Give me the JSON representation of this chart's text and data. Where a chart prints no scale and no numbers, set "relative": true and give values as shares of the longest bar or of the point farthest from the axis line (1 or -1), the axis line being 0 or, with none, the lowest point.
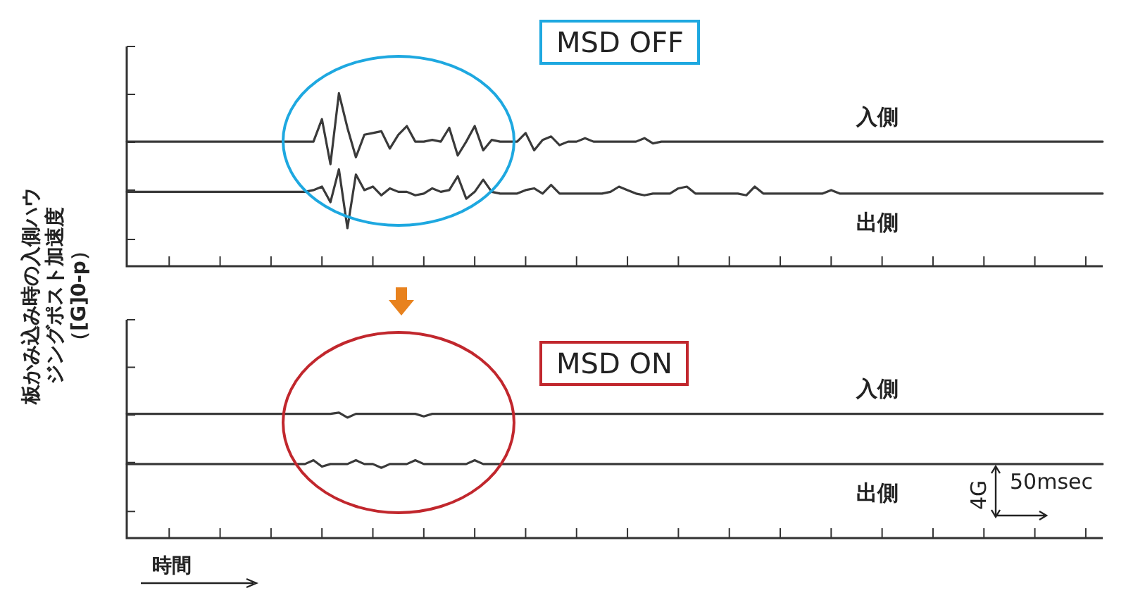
{
  "chart_data": [
    {
      "type": "line",
      "relative": true,
      "title": "MSD OFF",
      "ylabel": "板かみ込み時の入側ハウジングポスト加速度（[G]0-p）",
      "categories": [
        null,
        null,
        null,
        null,
        null,
        null,
        null,
        null,
        null,
        null,
        null,
        null,
        null,
        null,
        null,
        null,
        null,
        null,
        null,
        null,
        null,
        null,
        null,
        null,
        null,
        null,
        null,
        null,
        null,
        null,
        null,
        null,
        null,
        null,
        null,
        null,
        null,
        null,
        null,
        null,
        null,
        null,
        null,
        null,
        null,
        null,
        null,
        null,
        null,
        null,
        null,
        null,
        null,
        null,
        null,
        null,
        null,
        null,
        null,
        null,
        null,
        null,
        null,
        null,
        null,
        null,
        null,
        null,
        null,
        null,
        null,
        null,
        null,
        null,
        null,
        null,
        null,
        null,
        null,
        null,
        null,
        null,
        null,
        null,
        null,
        null,
        null,
        null,
        null,
        null,
        null,
        null,
        null,
        null,
        null,
        null,
        null,
        null,
        null,
        null,
        null,
        null,
        null,
        null,
        null,
        null,
        null,
        null,
        null,
        null,
        null,
        null,
        null,
        null,
        null,
        null
      ],
      "series": [
        {
          "name": "入側",
          "color": "#3a3a3a",
          "values": [
            0.72,
            0.72,
            0.72,
            0.72,
            0.72,
            0.72,
            0.72,
            0.72,
            0.72,
            0.72,
            0.72,
            0.72,
            0.72,
            0.72,
            0.72,
            0.72,
            0.72,
            0.72,
            0.72,
            0.72,
            0.72,
            0.72,
            0.72,
            0.85,
            0.59,
            1,
            0.8,
            0.63,
            0.76,
            0.77,
            0.78,
            0.68,
            0.76,
            0.81,
            0.72,
            0.72,
            0.73,
            0.72,
            0.8,
            0.64,
            0.72,
            0.81,
            0.67,
            0.73,
            0.72,
            0.72,
            0.72,
            0.77,
            0.67,
            0.73,
            0.75,
            0.7,
            0.72,
            0.72,
            0.74,
            0.72,
            0.72,
            0.72,
            0.72,
            0.72,
            0.72,
            0.74,
            0.71,
            0.72,
            0.72,
            0.72,
            0.72,
            0.72,
            0.72,
            0.72,
            0.72,
            0.72,
            0.72,
            0.72,
            0.72,
            0.72,
            0.72,
            0.72,
            0.72,
            0.72,
            0.72,
            0.72,
            0.72,
            0.72,
            0.72,
            0.72,
            0.72,
            0.72,
            0.72,
            0.72,
            0.72,
            0.72,
            0.72,
            0.72,
            0.72,
            0.72,
            0.72,
            0.72,
            0.72,
            0.72,
            0.72,
            0.72,
            0.72,
            0.72,
            0.72,
            0.72,
            0.72,
            0.72,
            0.72,
            0.72,
            0.72,
            0.72,
            0.72,
            0.72,
            0.72,
            0.72
          ]
        },
        {
          "name": "出側",
          "color": "#3a3a3a",
          "values": [
            0.43,
            0.43,
            0.43,
            0.43,
            0.43,
            0.43,
            0.43,
            0.43,
            0.43,
            0.43,
            0.43,
            0.43,
            0.43,
            0.43,
            0.43,
            0.43,
            0.43,
            0.43,
            0.43,
            0.43,
            0.43,
            0.43,
            0.44,
            0.46,
            0.37,
            0.56,
            0.22,
            0.53,
            0.44,
            0.46,
            0.41,
            0.45,
            0.43,
            0.43,
            0.41,
            0.42,
            0.45,
            0.43,
            0.44,
            0.52,
            0.39,
            0.43,
            0.5,
            0.43,
            0.42,
            0.42,
            0.42,
            0.44,
            0.45,
            0.42,
            0.47,
            0.42,
            0.42,
            0.42,
            0.42,
            0.42,
            0.42,
            0.43,
            0.46,
            0.44,
            0.42,
            0.41,
            0.42,
            0.42,
            0.42,
            0.45,
            0.46,
            0.42,
            0.42,
            0.42,
            0.42,
            0.42,
            0.42,
            0.41,
            0.46,
            0.42,
            0.42,
            0.42,
            0.42,
            0.42,
            0.42,
            0.42,
            0.42,
            0.44,
            0.42,
            0.42,
            0.42,
            0.42,
            0.42,
            0.42,
            0.42,
            0.42,
            0.42,
            0.42,
            0.42,
            0.42,
            0.42,
            0.42,
            0.42,
            0.42,
            0.42,
            0.42,
            0.42,
            0.42,
            0.42,
            0.42,
            0.42,
            0.42,
            0.42,
            0.42,
            0.42,
            0.42,
            0.42,
            0.42,
            0.42,
            0.42
          ]
        }
      ]
    },
    {
      "type": "line",
      "relative": true,
      "title": "MSD ON",
      "xlabel": "時間",
      "annotations": [
        "4G",
        "50msec"
      ],
      "categories": [
        null,
        null,
        null,
        null,
        null,
        null,
        null,
        null,
        null,
        null,
        null,
        null,
        null,
        null,
        null,
        null,
        null,
        null,
        null,
        null,
        null,
        null,
        null,
        null,
        null,
        null,
        null,
        null,
        null,
        null,
        null,
        null,
        null,
        null,
        null,
        null,
        null,
        null,
        null,
        null,
        null,
        null,
        null,
        null,
        null,
        null,
        null,
        null,
        null,
        null,
        null,
        null,
        null,
        null,
        null,
        null,
        null,
        null,
        null,
        null,
        null,
        null,
        null,
        null,
        null,
        null,
        null,
        null,
        null,
        null,
        null,
        null,
        null,
        null,
        null,
        null,
        null,
        null,
        null,
        null,
        null,
        null,
        null,
        null,
        null,
        null,
        null,
        null,
        null,
        null,
        null,
        null,
        null,
        null,
        null,
        null,
        null,
        null,
        null,
        null,
        null,
        null,
        null,
        null,
        null,
        null,
        null,
        null,
        null,
        null,
        null,
        null,
        null,
        null,
        null,
        null
      ],
      "series": [
        {
          "name": "入側",
          "color": "#3a3a3a",
          "values": [
            0.99,
            0.99,
            0.99,
            0.99,
            0.99,
            0.99,
            0.99,
            0.99,
            0.99,
            0.99,
            0.99,
            0.99,
            0.99,
            0.99,
            0.99,
            0.99,
            0.99,
            0.99,
            0.99,
            0.99,
            0.99,
            0.99,
            0.99,
            0.99,
            0.99,
            1,
            0.96,
            0.99,
            0.99,
            0.99,
            0.99,
            0.99,
            0.99,
            0.99,
            0.99,
            0.97,
            0.99,
            0.99,
            0.99,
            0.99,
            0.99,
            0.99,
            0.99,
            0.99,
            0.99,
            0.99,
            0.99,
            0.99,
            0.99,
            0.99,
            0.99,
            0.99,
            0.99,
            0.99,
            0.99,
            0.99,
            0.99,
            0.99,
            0.99,
            0.99,
            0.99,
            0.99,
            0.99,
            0.99,
            0.99,
            0.99,
            0.99,
            0.99,
            0.99,
            0.99,
            0.99,
            0.99,
            0.99,
            0.99,
            0.99,
            0.99,
            0.99,
            0.99,
            0.99,
            0.99,
            0.99,
            0.99,
            0.99,
            0.99,
            0.99,
            0.99,
            0.99,
            0.99,
            0.99,
            0.99,
            0.99,
            0.99,
            0.99,
            0.99,
            0.99,
            0.99,
            0.99,
            0.99,
            0.99,
            0.99,
            0.99,
            0.99,
            0.99,
            0.99,
            0.99,
            0.99,
            0.99,
            0.99,
            0.99,
            0.99,
            0.99,
            0.99,
            0.99,
            0.99,
            0.99,
            0.99
          ]
        },
        {
          "name": "出側",
          "color": "#3a3a3a",
          "values": [
            0.59,
            0.59,
            0.59,
            0.59,
            0.59,
            0.59,
            0.59,
            0.59,
            0.59,
            0.59,
            0.59,
            0.59,
            0.59,
            0.59,
            0.59,
            0.59,
            0.59,
            0.59,
            0.59,
            0.59,
            0.59,
            0.59,
            0.62,
            0.57,
            0.59,
            0.59,
            0.59,
            0.62,
            0.59,
            0.59,
            0.56,
            0.59,
            0.59,
            0.59,
            0.62,
            0.59,
            0.59,
            0.59,
            0.59,
            0.59,
            0.59,
            0.62,
            0.59,
            0.59,
            0.59,
            0.59,
            0.59,
            0.59,
            0.59,
            0.59,
            0.59,
            0.59,
            0.59,
            0.59,
            0.59,
            0.59,
            0.59,
            0.59,
            0.59,
            0.59,
            0.59,
            0.59,
            0.59,
            0.59,
            0.59,
            0.59,
            0.59,
            0.59,
            0.59,
            0.59,
            0.59,
            0.59,
            0.59,
            0.59,
            0.59,
            0.59,
            0.59,
            0.59,
            0.59,
            0.59,
            0.59,
            0.59,
            0.59,
            0.59,
            0.59,
            0.59,
            0.59,
            0.59,
            0.59,
            0.59,
            0.59,
            0.59,
            0.59,
            0.59,
            0.59,
            0.59,
            0.59,
            0.59,
            0.59,
            0.59,
            0.59,
            0.59,
            0.59,
            0.59,
            0.59,
            0.59,
            0.59,
            0.59,
            0.59,
            0.59,
            0.59,
            0.59,
            0.59,
            0.59,
            0.59,
            0.59
          ]
        }
      ]
    }
  ]
}
